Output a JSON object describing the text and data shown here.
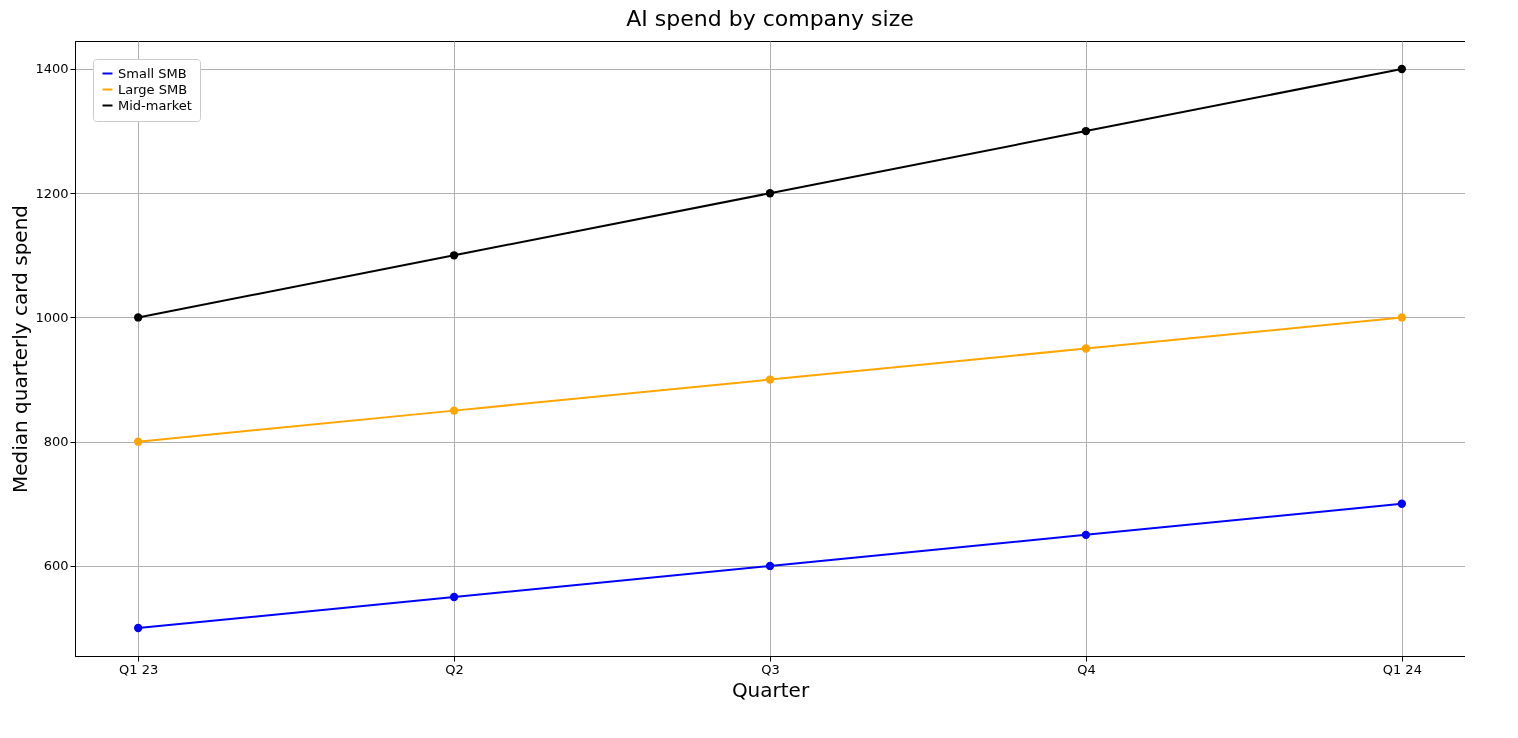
{
  "chart_data": {
    "type": "line",
    "title": "AI spend by company size",
    "xlabel": "Quarter",
    "ylabel": "Median quarterly card spend",
    "categories": [
      "Q1 23",
      "Q2",
      "Q3",
      "Q4",
      "Q1 24"
    ],
    "series": [
      {
        "name": "Small SMB",
        "color": "#0000ff",
        "values": [
          500,
          550,
          600,
          650,
          700
        ]
      },
      {
        "name": "Large SMB",
        "color": "#ffa500",
        "values": [
          800,
          850,
          900,
          950,
          1000
        ]
      },
      {
        "name": "Mid-market",
        "color": "#000000",
        "values": [
          1000,
          1100,
          1200,
          1300,
          1400
        ]
      }
    ],
    "ylim": [
      455,
      1445
    ],
    "yticks": [
      600,
      800,
      1000,
      1200,
      1400
    ],
    "grid": true,
    "legend": "top left",
    "marker": "circle",
    "line_style": "solid"
  }
}
